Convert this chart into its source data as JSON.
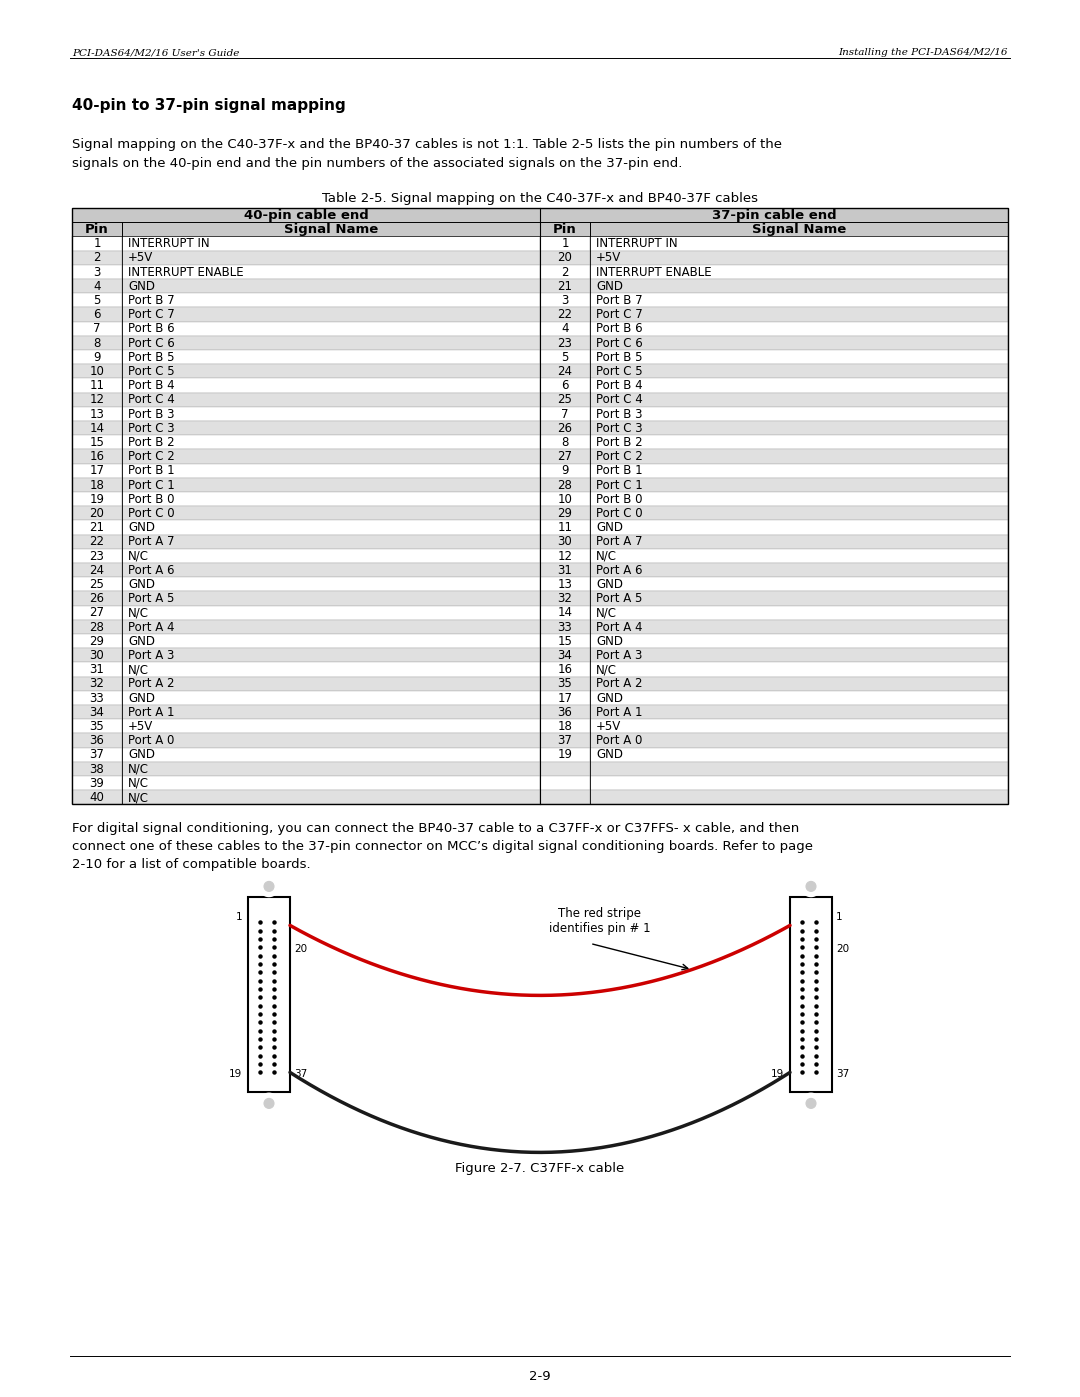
{
  "header_left": "PCI-DAS64/M2/16 User's Guide",
  "header_right": "Installing the PCI-DAS64/M2/16",
  "section_title": "40-pin to 37-pin signal mapping",
  "body_text1": "Signal mapping on the C40-37F-x and the BP40-37 cables is not 1:1. Table 2-5 lists the pin numbers of the",
  "body_text2": "signals on the 40-pin end and the pin numbers of the associated signals on the 37-pin end.",
  "table_title": "Table 2-5. Signal mapping on the C40-37F-x and BP40-37F cables",
  "col_headers": [
    "40-pin cable end",
    "37-pin cable end"
  ],
  "sub_headers": [
    "Pin",
    "Signal Name",
    "Pin",
    "Signal Name"
  ],
  "pin40": [
    1,
    2,
    3,
    4,
    5,
    6,
    7,
    8,
    9,
    10,
    11,
    12,
    13,
    14,
    15,
    16,
    17,
    18,
    19,
    20,
    21,
    22,
    23,
    24,
    25,
    26,
    27,
    28,
    29,
    30,
    31,
    32,
    33,
    34,
    35,
    36,
    37,
    38,
    39,
    40
  ],
  "name40": [
    "INTERRUPT IN",
    "+5V",
    "INTERRUPT ENABLE",
    "GND",
    "Port B 7",
    "Port C 7",
    "Port B 6",
    "Port C 6",
    "Port B 5",
    "Port C 5",
    "Port B 4",
    "Port C 4",
    "Port B 3",
    "Port C 3",
    "Port B 2",
    "Port C 2",
    "Port B 1",
    "Port C 1",
    "Port B 0",
    "Port C 0",
    "GND",
    "Port A 7",
    "N/C",
    "Port A 6",
    "GND",
    "Port A 5",
    "N/C",
    "Port A 4",
    "GND",
    "Port A 3",
    "N/C",
    "Port A 2",
    "GND",
    "Port A 1",
    "+5V",
    "Port A 0",
    "GND",
    "N/C",
    "N/C",
    "N/C"
  ],
  "pin37": [
    1,
    20,
    2,
    21,
    3,
    22,
    4,
    23,
    5,
    24,
    6,
    25,
    7,
    26,
    8,
    27,
    9,
    28,
    10,
    29,
    11,
    30,
    12,
    31,
    13,
    32,
    14,
    33,
    15,
    34,
    16,
    35,
    17,
    36,
    18,
    37,
    19,
    "",
    "",
    ""
  ],
  "name37": [
    "INTERRUPT IN",
    "+5V",
    "INTERRUPT ENABLE",
    "GND",
    "Port B 7",
    "Port C 7",
    "Port B 6",
    "Port C 6",
    "Port B 5",
    "Port C 5",
    "Port B 4",
    "Port C 4",
    "Port B 3",
    "Port C 3",
    "Port B 2",
    "Port C 2",
    "Port B 1",
    "Port C 1",
    "Port B 0",
    "Port C 0",
    "GND",
    "Port A 7",
    "N/C",
    "Port A 6",
    "GND",
    "Port A 5",
    "N/C",
    "Port A 4",
    "GND",
    "Port A 3",
    "N/C",
    "Port A 2",
    "GND",
    "Port A 1",
    "+5V",
    "Port A 0",
    "GND",
    "",
    "",
    ""
  ],
  "footer_text1": "For digital signal conditioning, you can connect the BP40-37 cable to a C37FF-x or C37FFS- x cable, and then",
  "footer_text2": "connect one of these cables to the 37-pin connector on MCC’s digital signal conditioning boards. Refer to page",
  "footer_text3": "2-10 for a list of compatible boards.",
  "figure_caption": "Figure 2-7. C37FF-x cable",
  "page_number": "2-9",
  "bg_color": "#ffffff",
  "table_header_bg": "#c8c8c8",
  "table_row_alt1": "#ffffff",
  "table_row_alt2": "#e0e0e0",
  "table_border": "#000000"
}
